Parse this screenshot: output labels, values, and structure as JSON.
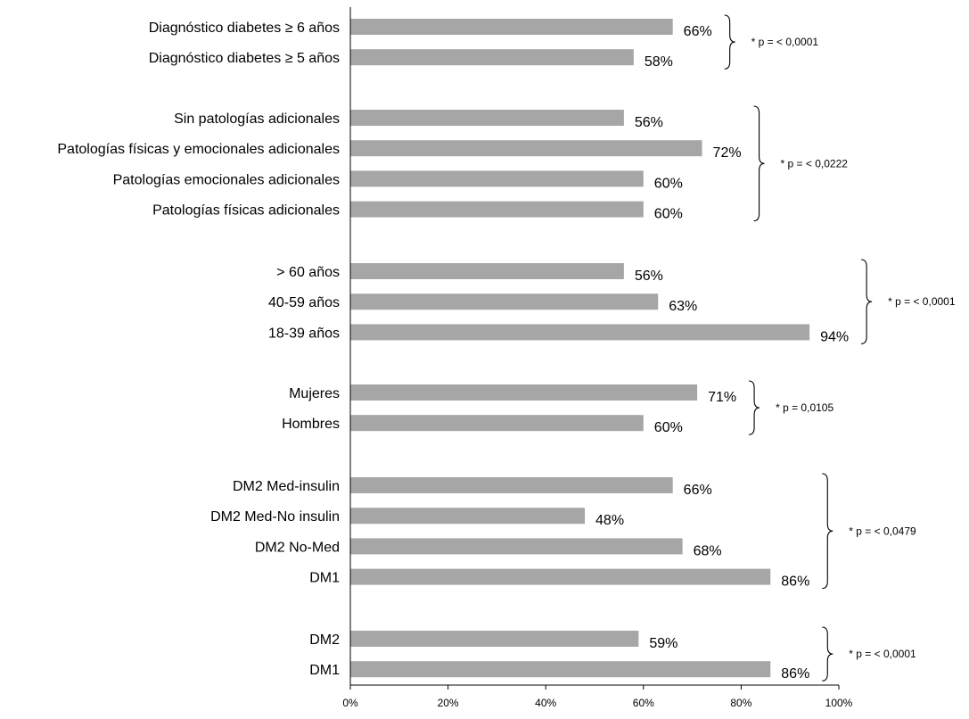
{
  "chart_data": {
    "type": "bar",
    "orientation": "horizontal",
    "title": "",
    "xlabel": "",
    "ylabel": "",
    "xlim": [
      0,
      100
    ],
    "grid": false,
    "bar_color": "#a6a6a6",
    "axis_color": "#000000",
    "ticks": [
      "0%",
      "20%",
      "40%",
      "60%",
      "80%",
      "100%"
    ],
    "tick_values": [
      0,
      20,
      40,
      60,
      80,
      100
    ],
    "groups": [
      {
        "p_label": "* p = < 0,0001",
        "bars": [
          {
            "label": "Diagnóstico diabetes ≥ 6 años",
            "value": 66,
            "value_label": "66%"
          },
          {
            "label": "Diagnóstico diabetes ≥ 5 años",
            "value": 58,
            "value_label": "58%"
          }
        ]
      },
      {
        "p_label": "* p = < 0,0222",
        "bars": [
          {
            "label": "Sin patologías adicionales",
            "value": 56,
            "value_label": "56%"
          },
          {
            "label": "Patologías físicas y emocionales adicionales",
            "value": 72,
            "value_label": "72%"
          },
          {
            "label": "Patologías emocionales adicionales",
            "value": 60,
            "value_label": "60%"
          },
          {
            "label": "Patologías físicas adicionales",
            "value": 60,
            "value_label": "60%"
          }
        ]
      },
      {
        "p_label": "* p = < 0,0001",
        "bars": [
          {
            "label": "> 60 años",
            "value": 56,
            "value_label": "56%"
          },
          {
            "label": "40-59 años",
            "value": 63,
            "value_label": "63%"
          },
          {
            "label": "18-39 años",
            "value": 94,
            "value_label": "94%"
          }
        ]
      },
      {
        "p_label": "* p = 0,0105",
        "bars": [
          {
            "label": "Mujeres",
            "value": 71,
            "value_label": "71%"
          },
          {
            "label": "Hombres",
            "value": 60,
            "value_label": "60%"
          }
        ]
      },
      {
        "p_label": "* p = < 0,0479",
        "bars": [
          {
            "label": "DM2 Med-insulin",
            "value": 66,
            "value_label": "66%"
          },
          {
            "label": "DM2 Med-No insulin",
            "value": 48,
            "value_label": "48%"
          },
          {
            "label": "DM2 No-Med",
            "value": 68,
            "value_label": "68%"
          },
          {
            "label": "DM1",
            "value": 86,
            "value_label": "86%"
          }
        ]
      },
      {
        "p_label": "* p = < 0,0001",
        "bars": [
          {
            "label": "DM2",
            "value": 59,
            "value_label": "59%"
          },
          {
            "label": "DM1",
            "value": 86,
            "value_label": "86%"
          }
        ]
      }
    ]
  }
}
